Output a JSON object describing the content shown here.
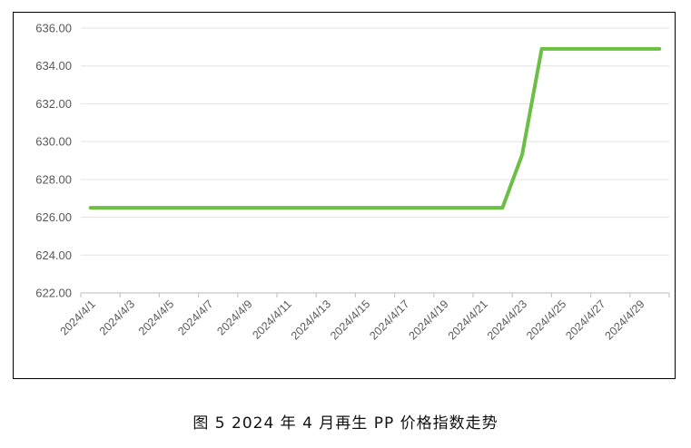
{
  "chart_data": {
    "type": "line",
    "title": "",
    "xlabel": "",
    "ylabel": "",
    "ylim": [
      622,
      636
    ],
    "yticks": [
      "636.00",
      "634.00",
      "632.00",
      "630.00",
      "628.00",
      "626.00",
      "624.00",
      "622.00"
    ],
    "ytick_values": [
      636,
      634,
      632,
      630,
      628,
      626,
      624,
      622
    ],
    "x": [
      "2024/4/1",
      "2024/4/2",
      "2024/4/3",
      "2024/4/4",
      "2024/4/5",
      "2024/4/6",
      "2024/4/7",
      "2024/4/8",
      "2024/4/9",
      "2024/4/10",
      "2024/4/11",
      "2024/4/12",
      "2024/4/13",
      "2024/4/14",
      "2024/4/15",
      "2024/4/16",
      "2024/4/17",
      "2024/4/18",
      "2024/4/19",
      "2024/4/20",
      "2024/4/21",
      "2024/4/22",
      "2024/4/23",
      "2024/4/24",
      "2024/4/25",
      "2024/4/26",
      "2024/4/27",
      "2024/4/28",
      "2024/4/29",
      "2024/4/30"
    ],
    "xtick_labels": [
      "2024/4/1",
      "2024/4/3",
      "2024/4/5",
      "2024/4/7",
      "2024/4/9",
      "2024/4/11",
      "2024/4/13",
      "2024/4/15",
      "2024/4/17",
      "2024/4/19",
      "2024/4/21",
      "2024/4/23",
      "2024/4/25",
      "2024/4/27",
      "2024/4/29"
    ],
    "series": [
      {
        "values": [
          626.5,
          626.5,
          626.5,
          626.5,
          626.5,
          626.5,
          626.5,
          626.5,
          626.5,
          626.5,
          626.5,
          626.5,
          626.5,
          626.5,
          626.5,
          626.5,
          626.5,
          626.5,
          626.5,
          626.5,
          626.5,
          626.5,
          629.3,
          634.9,
          634.9,
          634.9,
          634.9,
          634.9,
          634.9,
          634.9
        ],
        "color": "#6bbf45"
      }
    ],
    "grid": true,
    "legend": "none"
  },
  "caption": "图 5  2024 年 4 月再生 PP 价格指数走势"
}
